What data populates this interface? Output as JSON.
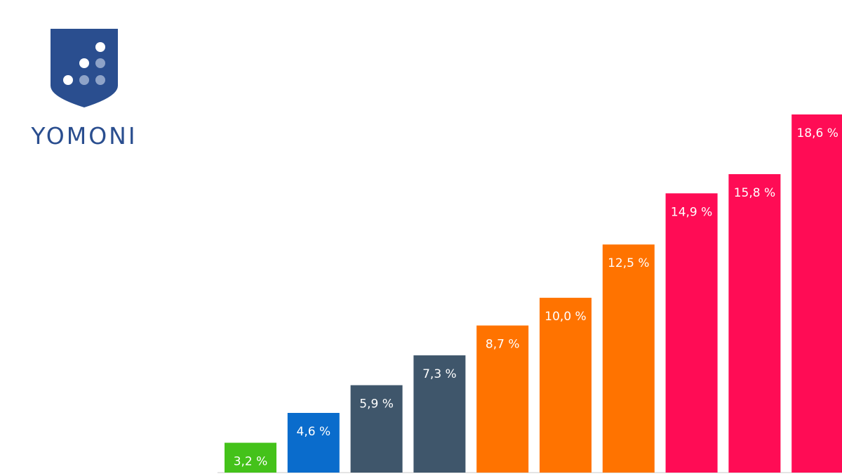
{
  "logo": {
    "text": "YOMONI"
  },
  "chart_data": {
    "type": "bar",
    "categories": [
      null,
      null,
      null,
      null,
      null,
      null,
      null,
      null,
      null,
      null
    ],
    "values": [
      3.2,
      4.6,
      5.9,
      7.3,
      8.7,
      10.0,
      12.5,
      14.9,
      15.8,
      18.6
    ],
    "value_labels": [
      "3,2 %",
      "4,6 %",
      "5,9 %",
      "7,3 %",
      "8,7 %",
      "10,0 %",
      "12,5 %",
      "14,9 %",
      "15,8 %",
      "18,6 %"
    ],
    "colors": [
      "#44c21a",
      "#0a6ccc",
      "#3f566b",
      "#3f566b",
      "#ff7300",
      "#ff7300",
      "#ff7300",
      "#ff0c55",
      "#ff0c55",
      "#ff0c55"
    ],
    "ylim": [
      1.8,
      18.6
    ]
  }
}
